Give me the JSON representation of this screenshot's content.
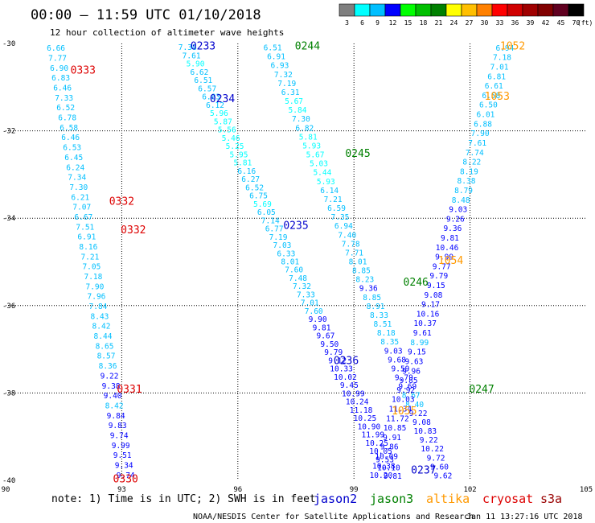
{
  "title": "00:00 – 11:59 UTC 01/10/2018",
  "subtitle": "12 hour collection of altimeter wave heights",
  "colorbar": {
    "unit": "(ft)",
    "bins": [
      {
        "label": "3",
        "color": "#7f7f7f"
      },
      {
        "label": "6",
        "color": "#00ffff"
      },
      {
        "label": "9",
        "color": "#00bfff"
      },
      {
        "label": "12",
        "color": "#0000ff"
      },
      {
        "label": "15",
        "color": "#00ff00"
      },
      {
        "label": "18",
        "color": "#00bf00"
      },
      {
        "label": "21",
        "color": "#008000"
      },
      {
        "label": "24",
        "color": "#ffff00"
      },
      {
        "label": "27",
        "color": "#ffbf00"
      },
      {
        "label": "30",
        "color": "#ff8000"
      },
      {
        "label": "33",
        "color": "#ff0000"
      },
      {
        "label": "36",
        "color": "#d00000"
      },
      {
        "label": "39",
        "color": "#a00000"
      },
      {
        "label": "42",
        "color": "#800000"
      },
      {
        "label": "45",
        "color": "#600020"
      },
      {
        "label": "70",
        "color": "#000000"
      }
    ]
  },
  "note": "note:  1) Time is in UTC; 2) SWH is in feet",
  "satellites": [
    {
      "name": "jason2",
      "color": "#0000cc"
    },
    {
      "name": "jason3",
      "color": "#008000"
    },
    {
      "name": "altika",
      "color": "#ff9900"
    },
    {
      "name": "cryosat",
      "color": "#dd0000"
    },
    {
      "name": "s3a",
      "color": "#990000"
    }
  ],
  "credit": "NOAA/NESDIS Center for Satellite Applications and Research",
  "timestamp": "Jan 11 13:27:16 UTC 2018",
  "chart_data": {
    "type": "scatter",
    "title": "00:00 – 11:59 UTC 01/10/2018",
    "subtitle": "12 hour collection of altimeter wave heights",
    "xlim": [
      90,
      105
    ],
    "ylim": [
      -40,
      -30
    ],
    "x_ticks": [
      "90",
      "93",
      "96",
      "99",
      "102",
      "105"
    ],
    "y_ticks": [
      "-30",
      "-32",
      "-34",
      "-36",
      "-38",
      "-40"
    ],
    "grid": true,
    "value_unit": "ft",
    "tracks": [
      {
        "satellite": "cryosat",
        "lon_start": 91.3,
        "lon_end": 93.1,
        "values": [
          "6.66",
          "7.77",
          "6.90",
          "6.83",
          "6.46",
          "7.33",
          "6.52",
          "6.78",
          "6.58",
          "6.46",
          "6.53",
          "6.45",
          "6.24",
          "7.34",
          "7.30",
          "6.21",
          "7.07",
          "6.67",
          "7.51",
          "6.91",
          "8.16",
          "7.21",
          "7.05",
          "7.18",
          "7.90",
          "7.96",
          "7.84",
          "8.43",
          "8.42",
          "8.44",
          "8.65",
          "8.57",
          "8.36",
          "9.22",
          "9.38",
          "9.40",
          "8.42",
          "9.84",
          "9.83",
          "9.74",
          "9.99",
          "9.51",
          "9.34",
          "9.74"
        ]
      },
      {
        "satellite": "jason2",
        "lon_start": 94.7,
        "lon_end": 100.0,
        "values": [
          "7.38",
          "7.61",
          "5.90",
          "6.62",
          "6.51",
          "6.57",
          "6.83",
          "6.12",
          "5.96",
          "5.87",
          "5.56",
          "5.46",
          "5.25",
          "5.95",
          "5.81",
          "6.16",
          "6.27",
          "6.52",
          "6.75",
          "5.69",
          "6.05",
          "7.14",
          "6.77",
          "7.19",
          "7.03",
          "6.33",
          "8.01",
          "7.60",
          "7.48",
          "7.32",
          "7.33",
          "7.01",
          "7.60",
          "9.90",
          "9.81",
          "9.67",
          "9.50",
          "9.79",
          "9.12",
          "10.33",
          "10.02",
          "9.45",
          "10.99",
          "10.24",
          "11.18",
          "10.25",
          "10.90",
          "11.99",
          "10.25",
          "10.05",
          "9.53",
          "10.10",
          "9.81"
        ]
      },
      {
        "satellite": "jason3",
        "lon_start": 96.9,
        "lon_end": 101.3,
        "values": [
          "6.51",
          "6.91",
          "6.93",
          "7.32",
          "7.19",
          "6.31",
          "5.67",
          "5.84",
          "7.30",
          "6.82",
          "5.81",
          "5.93",
          "5.67",
          "5.03",
          "5.44",
          "5.93",
          "6.14",
          "7.21",
          "6.59",
          "7.35",
          "6.94",
          "7.40",
          "7.78",
          "7.71",
          "8.01",
          "8.85",
          "8.23",
          "9.36",
          "8.85",
          "8.91",
          "8.33",
          "8.51",
          "8.18",
          "8.35",
          "9.03",
          "9.68",
          "9.59",
          "9.79",
          "9.69",
          "8.67",
          "8.40",
          "9.22",
          "9.08",
          "10.83",
          "9.22",
          "10.22",
          "9.72",
          "9.60",
          "9.62"
        ]
      },
      {
        "satellite": "jason2",
        "lon_start": 102.9,
        "lon_end": 99.7,
        "values": [
          "6.94",
          "7.18",
          "7.01",
          "6.81",
          "6.61",
          "6.58",
          "6.50",
          "6.01",
          "6.88",
          "7.90",
          "7.61",
          "7.74",
          "8.22",
          "8.19",
          "8.38",
          "8.79",
          "8.48",
          "9.03",
          "9.26",
          "9.36",
          "9.81",
          "10.46",
          "9.99",
          "9.77",
          "9.79",
          "9.15",
          "9.08",
          "9.17",
          "10.16",
          "10.37",
          "9.61",
          "8.99",
          "9.15",
          "9.63",
          "9.96",
          "9.85",
          "9.92",
          "10.03",
          "11.34",
          "11.72",
          "10.85",
          "9.91",
          "9.86",
          "10.09",
          "10.38",
          "10.20"
        ]
      }
    ],
    "pass_labels": [
      {
        "text": "0333",
        "satellite": "cryosat"
      },
      {
        "text": "0332",
        "satellite": "cryosat"
      },
      {
        "text": "0332",
        "satellite": "cryosat"
      },
      {
        "text": "0331",
        "satellite": "cryosat"
      },
      {
        "text": "0330",
        "satellite": "cryosat"
      },
      {
        "text": "0233",
        "satellite": "jason2"
      },
      {
        "text": "0234",
        "satellite": "jason2"
      },
      {
        "text": "0235",
        "satellite": "jason2"
      },
      {
        "text": "0236",
        "satellite": "jason2"
      },
      {
        "text": "0237",
        "satellite": "jason2"
      },
      {
        "text": "0244",
        "satellite": "jason3"
      },
      {
        "text": "0245",
        "satellite": "jason3"
      },
      {
        "text": "0246",
        "satellite": "jason3"
      },
      {
        "text": "0247",
        "satellite": "jason3"
      },
      {
        "text": "1052",
        "satellite": "altika"
      },
      {
        "text": "1053",
        "satellite": "altika"
      },
      {
        "text": "1054",
        "satellite": "altika"
      },
      {
        "text": "1055",
        "satellite": "altika"
      }
    ]
  }
}
